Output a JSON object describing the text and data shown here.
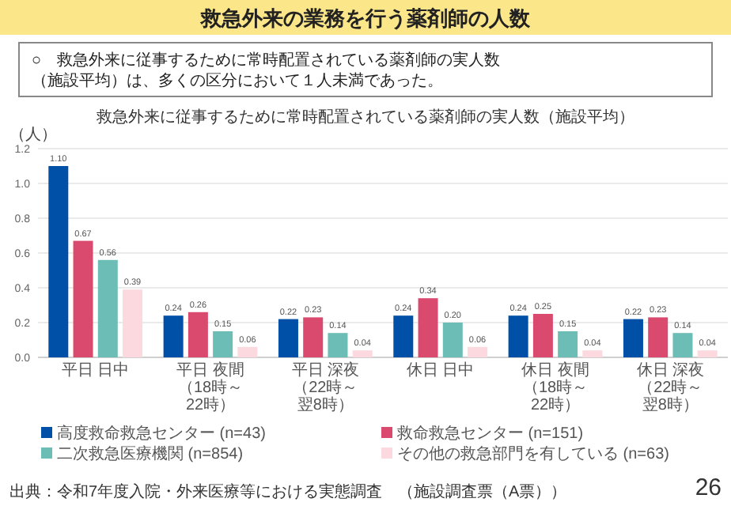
{
  "chart_data": {
    "type": "bar",
    "title": "救急外来の業務を行う薬剤師の人数",
    "subtitle": "○　救急外来に従事するために常時配置されている薬剤師の実人数（施設平均）は、多くの区分において１人未満であった。",
    "annotations": [
      "救急外来に従事するために常時配置されている薬剤師の実人数（施設平均）",
      "出典：令和7年度入院・外来医療等における実態調査　（施設調査票（A票））",
      "26"
    ],
    "ylabel": "（人）",
    "categories": [
      "平日 日中",
      "平日 夜間（18時～22時）",
      "平日 深夜（22時～翌8時）",
      "休日 日中",
      "休日 夜間（18時～22時）",
      "休日 深夜（22時～翌8時）"
    ],
    "series": [
      {
        "name": "高度救命救急センター (n=43)",
        "color": "#0050a8",
        "values": [
          1.1,
          0.24,
          0.22,
          0.24,
          0.24,
          0.22
        ],
        "value_labels": [
          "1.10",
          "0.24",
          "0.22",
          "0.24",
          "0.24",
          "0.22"
        ]
      },
      {
        "name": "救命救急センター (n=151)",
        "color": "#d94a6e",
        "values": [
          0.67,
          0.26,
          0.23,
          0.34,
          0.25,
          0.23
        ],
        "value_labels": [
          "0.67",
          "0.26",
          "0.23",
          "0.34",
          "0.25",
          "0.23"
        ]
      },
      {
        "name": "二次救急医療機関 (n=854)",
        "color": "#6bbdb5",
        "values": [
          0.56,
          0.15,
          0.14,
          0.2,
          0.15,
          0.14
        ],
        "value_labels": [
          "0.56",
          "0.15",
          "0.14",
          "0.20",
          "0.15",
          "0.14"
        ]
      },
      {
        "name": "その他の救急部門を有している (n=63)",
        "color": "#fcd9de",
        "values": [
          0.39,
          0.06,
          0.04,
          0.06,
          0.04,
          0.04
        ],
        "value_labels": [
          "0.39",
          "0.06",
          "0.04",
          "0.06",
          "0.04",
          "0.04"
        ]
      }
    ],
    "ylim": [
      0,
      1.2
    ],
    "yticks": [
      {
        "value": 0,
        "label": "0.0"
      },
      0.2,
      0.4,
      0.6,
      0.8,
      {
        "value": 1,
        "label": "1.0"
      },
      1.2
    ],
    "grid": "y",
    "legend": "bottom"
  }
}
